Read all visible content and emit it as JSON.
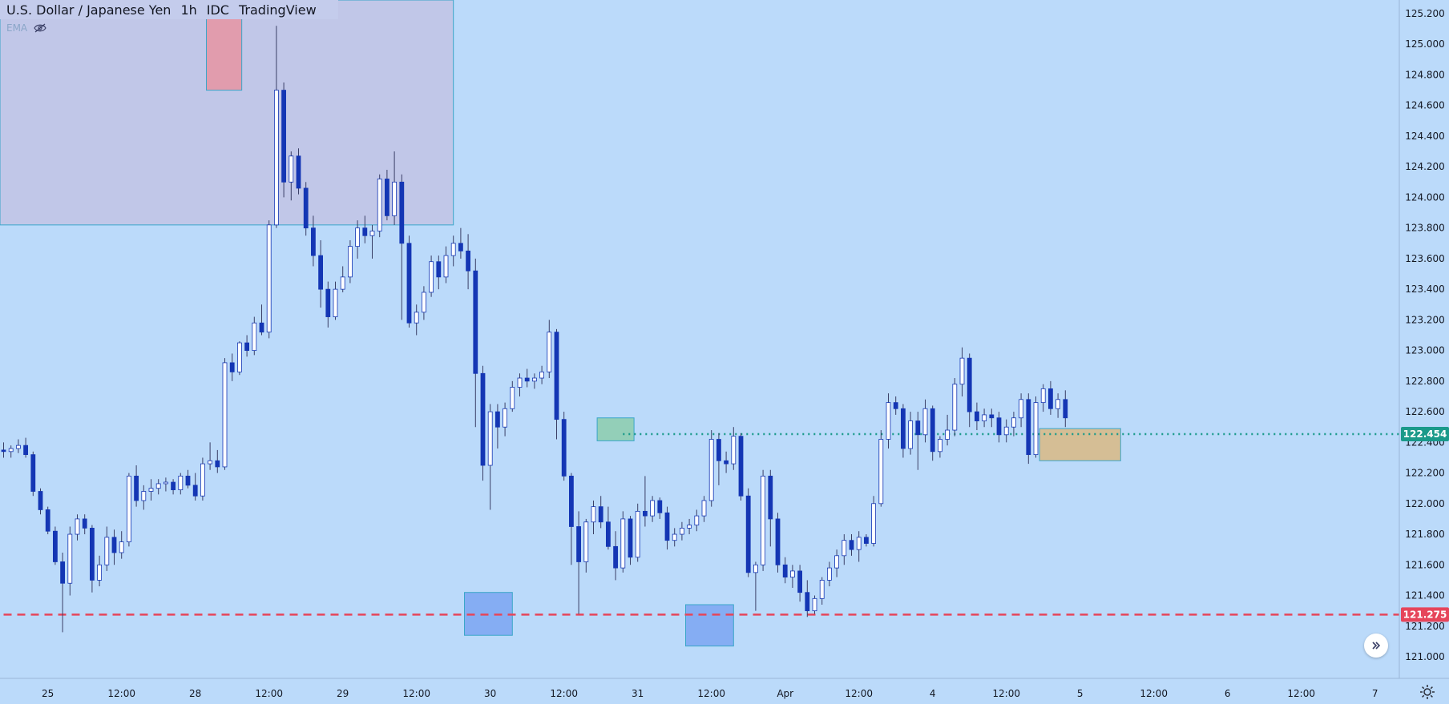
{
  "header": {
    "symbol": "U.S. Dollar / Japanese Yen",
    "interval": "1h",
    "exchange": "IDC",
    "source": "TradingView",
    "indicator": "EMA"
  },
  "colors": {
    "background": "#bbdafa",
    "up_body": "#ffffff",
    "down_body": "#1436b4",
    "wick": "#3a3f66",
    "support_line": "#e6455a",
    "resistance_line": "#1a9a8a",
    "zone_purple": "#c2c4e6",
    "zone_red": "#e497a6",
    "zone_green": "#8fcdb0",
    "zone_blue": "#7fa7f2",
    "zone_tan": "#d8ba8a"
  },
  "chart_data": {
    "type": "candlestick",
    "title": "U.S. Dollar / Japanese Yen 1h IDC TradingView",
    "xlabel": "",
    "ylabel": "",
    "ylim": [
      120.9,
      125.3
    ],
    "y_ticks": [
      "125.200",
      "125.000",
      "124.800",
      "124.600",
      "124.400",
      "124.200",
      "124.000",
      "123.800",
      "123.600",
      "123.400",
      "123.200",
      "123.000",
      "122.800",
      "122.600",
      "122.400",
      "122.200",
      "122.000",
      "121.800",
      "121.600",
      "121.400",
      "121.200",
      "121.000"
    ],
    "x_ticks": [
      {
        "label": "25",
        "i": 6
      },
      {
        "label": "12:00",
        "i": 16
      },
      {
        "label": "28",
        "i": 26
      },
      {
        "label": "12:00",
        "i": 36
      },
      {
        "label": "29",
        "i": 46
      },
      {
        "label": "12:00",
        "i": 56
      },
      {
        "label": "30",
        "i": 66
      },
      {
        "label": "12:00",
        "i": 76
      },
      {
        "label": "31",
        "i": 86
      },
      {
        "label": "12:00",
        "i": 96
      },
      {
        "label": "Apr",
        "i": 106
      },
      {
        "label": "12:00",
        "i": 116
      },
      {
        "label": "4",
        "i": 126
      },
      {
        "label": "12:00",
        "i": 136
      },
      {
        "label": "5",
        "i": 146
      },
      {
        "label": "12:00",
        "i": 156
      },
      {
        "label": "6",
        "i": 166
      },
      {
        "label": "12:00",
        "i": 176
      },
      {
        "label": "7",
        "i": 186
      }
    ],
    "price_labels": [
      {
        "label": "122.454",
        "value": 122.454,
        "color": "#1a9a8a"
      },
      {
        "label": "121.275",
        "value": 121.275,
        "color": "#e6455a"
      }
    ],
    "horizontal_lines": [
      {
        "value": 122.454,
        "style": "dotted",
        "color": "#1a9a8a",
        "from_i": 84
      },
      {
        "value": 121.275,
        "style": "dashed",
        "color": "#e6455a",
        "from_i": 0
      }
    ],
    "zones": [
      {
        "name": "zone-purple",
        "i0": -1,
        "i1": 61,
        "p0": 123.82,
        "p1": 125.3,
        "color": "#c2c4e6"
      },
      {
        "name": "zone-red",
        "i0": 27.5,
        "i1": 32.3,
        "p0": 124.7,
        "p1": 125.2,
        "color": "#e497a6"
      },
      {
        "name": "zone-green",
        "i0": 80.5,
        "i1": 85.5,
        "p0": 122.41,
        "p1": 122.56,
        "color": "#8fcdb0"
      },
      {
        "name": "zone-blue-1",
        "i0": 62.5,
        "i1": 69,
        "p0": 121.14,
        "p1": 121.42,
        "color": "#7fa7f2"
      },
      {
        "name": "zone-blue-2",
        "i0": 92.5,
        "i1": 99,
        "p0": 121.07,
        "p1": 121.34,
        "color": "#7fa7f2"
      },
      {
        "name": "zone-tan",
        "i0": 140.5,
        "i1": 151.5,
        "p0": 122.28,
        "p1": 122.49,
        "color": "#d8ba8a"
      }
    ],
    "ohlc": [
      [
        122.35,
        122.4,
        122.3,
        122.34
      ],
      [
        122.34,
        122.38,
        122.3,
        122.36
      ],
      [
        122.36,
        122.42,
        122.33,
        122.38
      ],
      [
        122.38,
        122.43,
        122.3,
        122.32
      ],
      [
        122.32,
        122.34,
        122.05,
        122.08
      ],
      [
        122.08,
        122.1,
        121.93,
        121.96
      ],
      [
        121.96,
        121.98,
        121.8,
        121.82
      ],
      [
        121.82,
        121.85,
        121.6,
        121.62
      ],
      [
        121.62,
        121.68,
        121.16,
        121.48
      ],
      [
        121.48,
        121.85,
        121.4,
        121.8
      ],
      [
        121.8,
        121.93,
        121.76,
        121.9
      ],
      [
        121.9,
        121.93,
        121.8,
        121.84
      ],
      [
        121.84,
        121.86,
        121.42,
        121.5
      ],
      [
        121.5,
        121.66,
        121.46,
        121.6
      ],
      [
        121.6,
        121.85,
        121.56,
        121.78
      ],
      [
        121.78,
        121.83,
        121.6,
        121.68
      ],
      [
        121.68,
        121.82,
        121.64,
        121.75
      ],
      [
        121.75,
        122.2,
        121.72,
        122.18
      ],
      [
        122.18,
        122.25,
        121.98,
        122.02
      ],
      [
        122.02,
        122.12,
        121.96,
        122.08
      ],
      [
        122.08,
        122.16,
        122.02,
        122.1
      ],
      [
        122.1,
        122.16,
        122.06,
        122.13
      ],
      [
        122.13,
        122.17,
        122.08,
        122.14
      ],
      [
        122.14,
        122.16,
        122.06,
        122.09
      ],
      [
        122.09,
        122.2,
        122.06,
        122.18
      ],
      [
        122.18,
        122.22,
        122.1,
        122.12
      ],
      [
        122.12,
        122.2,
        122.02,
        122.05
      ],
      [
        122.05,
        122.3,
        122.02,
        122.26
      ],
      [
        122.26,
        122.4,
        122.22,
        122.28
      ],
      [
        122.28,
        122.35,
        122.2,
        122.24
      ],
      [
        122.24,
        122.95,
        122.22,
        122.92
      ],
      [
        122.92,
        122.98,
        122.8,
        122.86
      ],
      [
        122.86,
        123.06,
        122.84,
        123.05
      ],
      [
        123.05,
        123.1,
        122.96,
        123.0
      ],
      [
        123.0,
        123.22,
        122.97,
        123.18
      ],
      [
        123.18,
        123.3,
        123.1,
        123.12
      ],
      [
        123.12,
        123.85,
        123.08,
        123.82
      ],
      [
        123.82,
        125.12,
        123.8,
        124.7
      ],
      [
        124.7,
        124.75,
        124.0,
        124.1
      ],
      [
        124.1,
        124.3,
        123.98,
        124.27
      ],
      [
        124.27,
        124.32,
        124.02,
        124.06
      ],
      [
        124.06,
        124.1,
        123.75,
        123.8
      ],
      [
        123.8,
        123.88,
        123.55,
        123.62
      ],
      [
        123.62,
        123.72,
        123.28,
        123.4
      ],
      [
        123.4,
        123.45,
        123.15,
        123.22
      ],
      [
        123.22,
        123.45,
        123.2,
        123.4
      ],
      [
        123.4,
        123.55,
        123.38,
        123.48
      ],
      [
        123.48,
        123.72,
        123.44,
        123.68
      ],
      [
        123.68,
        123.85,
        123.6,
        123.8
      ],
      [
        123.8,
        123.88,
        123.7,
        123.75
      ],
      [
        123.75,
        123.82,
        123.6,
        123.78
      ],
      [
        123.78,
        124.15,
        123.74,
        124.12
      ],
      [
        124.12,
        124.18,
        123.85,
        123.88
      ],
      [
        123.88,
        124.3,
        123.82,
        124.1
      ],
      [
        124.1,
        124.15,
        123.2,
        123.7
      ],
      [
        123.7,
        123.75,
        123.15,
        123.18
      ],
      [
        123.18,
        123.3,
        123.1,
        123.25
      ],
      [
        123.25,
        123.42,
        123.2,
        123.38
      ],
      [
        123.38,
        123.62,
        123.35,
        123.58
      ],
      [
        123.58,
        123.62,
        123.4,
        123.48
      ],
      [
        123.48,
        123.68,
        123.44,
        123.62
      ],
      [
        123.62,
        123.75,
        123.55,
        123.7
      ],
      [
        123.7,
        123.8,
        123.6,
        123.65
      ],
      [
        123.65,
        123.76,
        123.4,
        123.52
      ],
      [
        123.52,
        123.6,
        122.5,
        122.85
      ],
      [
        122.85,
        122.9,
        122.15,
        122.25
      ],
      [
        122.25,
        122.65,
        121.96,
        122.6
      ],
      [
        122.6,
        122.65,
        122.36,
        122.5
      ],
      [
        122.5,
        122.66,
        122.44,
        122.62
      ],
      [
        122.62,
        122.8,
        122.6,
        122.76
      ],
      [
        122.76,
        122.85,
        122.7,
        122.82
      ],
      [
        122.82,
        122.88,
        122.76,
        122.8
      ],
      [
        122.8,
        122.85,
        122.75,
        122.82
      ],
      [
        122.82,
        122.9,
        122.78,
        122.86
      ],
      [
        122.86,
        123.2,
        122.82,
        123.12
      ],
      [
        123.12,
        123.14,
        122.42,
        122.55
      ],
      [
        122.55,
        122.6,
        122.15,
        122.18
      ],
      [
        122.18,
        122.2,
        121.6,
        121.85
      ],
      [
        121.85,
        121.95,
        121.28,
        121.62
      ],
      [
        121.62,
        121.9,
        121.55,
        121.88
      ],
      [
        121.88,
        122.02,
        121.8,
        121.98
      ],
      [
        121.98,
        122.05,
        121.84,
        121.88
      ],
      [
        121.88,
        121.98,
        121.7,
        121.72
      ],
      [
        121.72,
        121.82,
        121.5,
        121.58
      ],
      [
        121.58,
        121.95,
        121.55,
        121.9
      ],
      [
        121.9,
        121.92,
        121.6,
        121.65
      ],
      [
        121.65,
        122.0,
        121.62,
        121.95
      ],
      [
        121.95,
        122.18,
        121.85,
        121.92
      ],
      [
        121.92,
        122.05,
        121.88,
        122.02
      ],
      [
        122.02,
        122.04,
        121.9,
        121.94
      ],
      [
        121.94,
        121.98,
        121.7,
        121.76
      ],
      [
        121.76,
        121.84,
        121.72,
        121.8
      ],
      [
        121.8,
        121.88,
        121.76,
        121.84
      ],
      [
        121.84,
        121.9,
        121.8,
        121.86
      ],
      [
        121.86,
        121.96,
        121.82,
        121.92
      ],
      [
        121.92,
        122.05,
        121.88,
        122.02
      ],
      [
        122.02,
        122.48,
        121.98,
        122.42
      ],
      [
        122.42,
        122.46,
        122.12,
        122.28
      ],
      [
        122.28,
        122.34,
        122.2,
        122.26
      ],
      [
        122.26,
        122.5,
        122.22,
        122.44
      ],
      [
        122.44,
        122.46,
        122.02,
        122.05
      ],
      [
        122.05,
        122.1,
        121.52,
        121.55
      ],
      [
        121.55,
        121.62,
        121.3,
        121.6
      ],
      [
        121.6,
        122.22,
        121.56,
        122.18
      ],
      [
        122.18,
        122.22,
        121.72,
        121.9
      ],
      [
        121.9,
        121.94,
        121.55,
        121.6
      ],
      [
        121.6,
        121.65,
        121.48,
        121.52
      ],
      [
        121.52,
        121.6,
        121.45,
        121.56
      ],
      [
        121.56,
        121.6,
        121.36,
        121.42
      ],
      [
        121.42,
        121.5,
        121.26,
        121.3
      ],
      [
        121.3,
        121.4,
        121.28,
        121.38
      ],
      [
        121.38,
        121.52,
        121.34,
        121.5
      ],
      [
        121.5,
        121.62,
        121.46,
        121.58
      ],
      [
        121.58,
        121.7,
        121.52,
        121.66
      ],
      [
        121.66,
        121.8,
        121.6,
        121.76
      ],
      [
        121.76,
        121.8,
        121.66,
        121.7
      ],
      [
        121.7,
        121.82,
        121.62,
        121.78
      ],
      [
        121.78,
        121.8,
        121.72,
        121.74
      ],
      [
        121.74,
        122.05,
        121.72,
        122.0
      ],
      [
        122.0,
        122.48,
        121.98,
        122.42
      ],
      [
        122.42,
        122.72,
        122.36,
        122.66
      ],
      [
        122.66,
        122.7,
        122.58,
        122.62
      ],
      [
        122.62,
        122.65,
        122.3,
        122.36
      ],
      [
        122.36,
        122.6,
        122.32,
        122.54
      ],
      [
        122.54,
        122.6,
        122.22,
        122.45
      ],
      [
        122.45,
        122.68,
        122.4,
        122.62
      ],
      [
        122.62,
        122.64,
        122.28,
        122.34
      ],
      [
        122.34,
        122.44,
        122.3,
        122.42
      ],
      [
        122.42,
        122.58,
        122.38,
        122.48
      ],
      [
        122.48,
        122.82,
        122.44,
        122.78
      ],
      [
        122.78,
        123.02,
        122.7,
        122.95
      ],
      [
        122.95,
        122.98,
        122.5,
        122.6
      ],
      [
        122.6,
        122.66,
        122.48,
        122.54
      ],
      [
        122.54,
        122.62,
        122.5,
        122.58
      ],
      [
        122.58,
        122.62,
        122.5,
        122.56
      ],
      [
        122.56,
        122.6,
        122.4,
        122.45
      ],
      [
        122.45,
        122.55,
        122.4,
        122.5
      ],
      [
        122.5,
        122.6,
        122.44,
        122.56
      ],
      [
        122.56,
        122.72,
        122.5,
        122.68
      ],
      [
        122.68,
        122.72,
        122.26,
        122.32
      ],
      [
        122.32,
        122.7,
        122.3,
        122.66
      ],
      [
        122.66,
        122.78,
        122.6,
        122.75
      ],
      [
        122.75,
        122.8,
        122.58,
        122.62
      ],
      [
        122.62,
        122.72,
        122.56,
        122.68
      ],
      [
        122.68,
        122.74,
        122.5,
        122.56
      ]
    ]
  }
}
